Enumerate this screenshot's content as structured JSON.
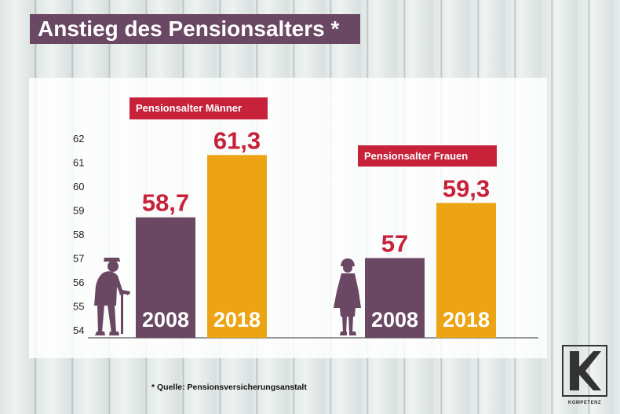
{
  "header": {
    "title": "Anstieg des Pensionsalters *"
  },
  "footer": {
    "source": "* Quelle: Pensionsversicherungsanstalt"
  },
  "logo": {
    "text": "KOMPETENZ"
  },
  "colors": {
    "purple": "#6a4762",
    "gold": "#eda414",
    "red": "#c8223a"
  },
  "icons": {
    "men": "elderly-man-with-cane-icon",
    "women": "elderly-woman-icon"
  },
  "chart_data": {
    "type": "bar",
    "ylim": [
      54,
      62
    ],
    "yticks": [
      "62",
      "61",
      "60",
      "59",
      "58",
      "57",
      "56",
      "55",
      "54"
    ],
    "groups": [
      {
        "label": "Pensionsalter Männer",
        "bars": [
          {
            "year": "2008",
            "value": 58.7,
            "label": "58,7",
            "color": "#6a4762"
          },
          {
            "year": "2018",
            "value": 61.3,
            "label": "61,3",
            "color": "#eda414"
          }
        ]
      },
      {
        "label": "Pensionsalter Frauen",
        "bars": [
          {
            "year": "2008",
            "value": 57,
            "label": "57",
            "color": "#6a4762"
          },
          {
            "year": "2018",
            "value": 59.3,
            "label": "59,3",
            "color": "#eda414"
          }
        ]
      }
    ]
  }
}
